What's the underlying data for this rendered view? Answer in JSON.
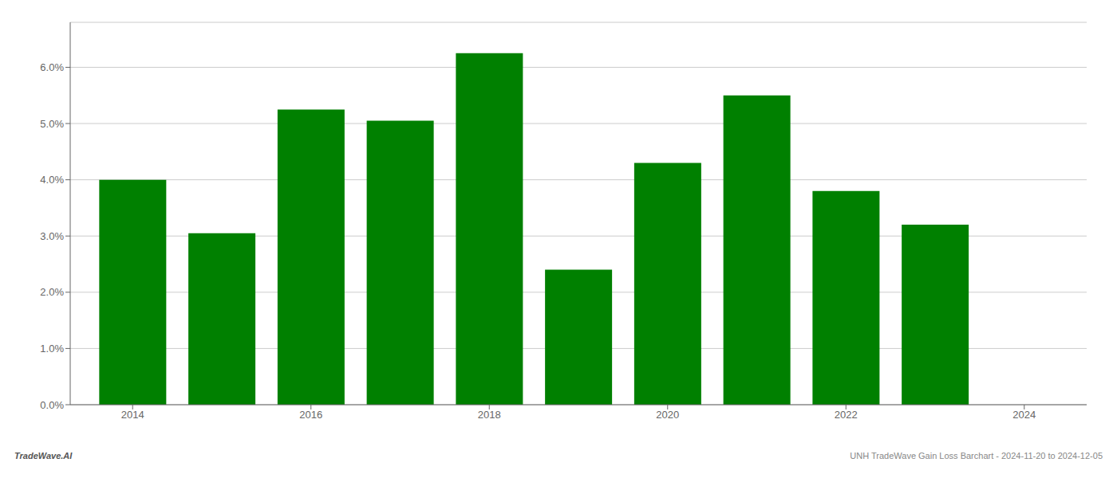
{
  "chart_data": {
    "type": "bar",
    "x": [
      2014,
      2015,
      2016,
      2017,
      2018,
      2019,
      2020,
      2021,
      2022,
      2023
    ],
    "values": [
      0.04,
      0.0305,
      0.0525,
      0.0505,
      0.0625,
      0.024,
      0.043,
      0.055,
      0.038,
      0.032
    ],
    "color": "#008000",
    "xlim": [
      2013.3,
      2024.7
    ],
    "xticks": [
      2014,
      2016,
      2018,
      2020,
      2022,
      2024
    ],
    "ylim": [
      0,
      0.068
    ],
    "yticks": [
      {
        "value": 0.0,
        "label": "0.0%"
      },
      {
        "value": 0.01,
        "label": "1.0%"
      },
      {
        "value": 0.02,
        "label": "2.0%"
      },
      {
        "value": 0.03,
        "label": "3.0%"
      },
      {
        "value": 0.04,
        "label": "4.0%"
      },
      {
        "value": 0.05,
        "label": "5.0%"
      },
      {
        "value": 0.06,
        "label": "6.0%"
      }
    ],
    "grid": true,
    "annotations": [
      "TradeWave.AI",
      "UNH TradeWave Gain Loss Barchart - 2024-11-20 to 2024-12-05"
    ]
  }
}
